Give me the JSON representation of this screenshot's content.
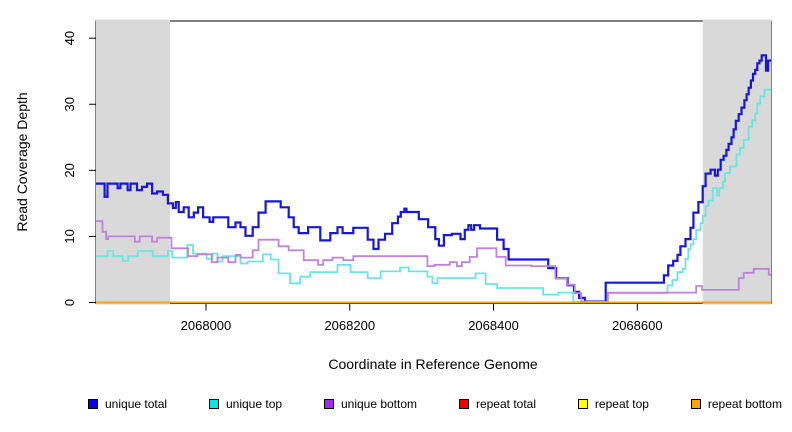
{
  "chart_data": {
    "type": "step-line",
    "title": "",
    "xlabel": "Coordinate in Reference Genome",
    "ylabel": "Read Coverage Depth",
    "xlim": [
      2067847,
      2068786
    ],
    "ylim": [
      0,
      42.6
    ],
    "x_ticks": [
      {
        "value": 2068000,
        "label": "2068000"
      },
      {
        "value": 2068200,
        "label": "2068200"
      },
      {
        "value": 2068400,
        "label": "2068400"
      },
      {
        "value": 2068600,
        "label": "2068600"
      }
    ],
    "y_ticks": [
      {
        "value": 0,
        "label": "0"
      },
      {
        "value": 10,
        "label": "10"
      },
      {
        "value": 20,
        "label": "20"
      },
      {
        "value": 30,
        "label": "30"
      },
      {
        "value": 40,
        "label": "40"
      }
    ],
    "grid": false,
    "legend_position": "bottom-horizontal",
    "background_color": "#FFFFFF",
    "axis_color": "#000000",
    "shaded_region_color": "#D9D9D9",
    "shaded_regions": [
      {
        "x0": 2067847,
        "x1": 2067950
      },
      {
        "x0": 2068691,
        "x1": 2068786
      }
    ],
    "series": [
      {
        "name": "unique total",
        "line_color": "#1717D6",
        "legend_color": "#0000EE",
        "line_width": 2.2,
        "steps": [
          [
            2067847,
            18
          ],
          [
            2067859,
            16
          ],
          [
            2067863,
            18
          ],
          [
            2067877,
            17.3
          ],
          [
            2067881,
            18
          ],
          [
            2067891,
            17
          ],
          [
            2067895,
            18
          ],
          [
            2067904,
            17
          ],
          [
            2067911,
            17.5
          ],
          [
            2067918,
            18
          ],
          [
            2067925,
            16.5
          ],
          [
            2067932,
            16.8
          ],
          [
            2067940,
            16.3
          ],
          [
            2067947,
            15
          ],
          [
            2067954,
            14.3
          ],
          [
            2067958,
            15.2
          ],
          [
            2067962,
            13.7
          ],
          [
            2067969,
            14.4
          ],
          [
            2067976,
            12.9
          ],
          [
            2067983,
            13.6
          ],
          [
            2067989,
            14.4
          ],
          [
            2067996,
            12.9
          ],
          [
            2068005,
            12.2
          ],
          [
            2068010,
            12.9
          ],
          [
            2068031,
            11.4
          ],
          [
            2068041,
            12.1
          ],
          [
            2068048,
            11.4
          ],
          [
            2068055,
            10.1
          ],
          [
            2068065,
            11.4
          ],
          [
            2068073,
            13.6
          ],
          [
            2068083,
            15.3
          ],
          [
            2068104,
            14.4
          ],
          [
            2068115,
            12.9
          ],
          [
            2068122,
            11.4
          ],
          [
            2068129,
            10.5
          ],
          [
            2068142,
            11.4
          ],
          [
            2068159,
            9.4
          ],
          [
            2068173,
            10.5
          ],
          [
            2068183,
            11.4
          ],
          [
            2068190,
            10.5
          ],
          [
            2068205,
            11.3
          ],
          [
            2068225,
            9.5
          ],
          [
            2068233,
            8.1
          ],
          [
            2068240,
            9.5
          ],
          [
            2068249,
            10.4
          ],
          [
            2068259,
            12
          ],
          [
            2068267,
            13
          ],
          [
            2068271,
            13.7
          ],
          [
            2068276,
            14.2
          ],
          [
            2068279,
            13.7
          ],
          [
            2068296,
            12.6
          ],
          [
            2068309,
            11.4
          ],
          [
            2068319,
            9.6
          ],
          [
            2068324,
            8.6
          ],
          [
            2068331,
            10.2
          ],
          [
            2068342,
            10.4
          ],
          [
            2068354,
            9.6
          ],
          [
            2068360,
            11
          ],
          [
            2068365,
            11.7
          ],
          [
            2068369,
            11
          ],
          [
            2068373,
            11.7
          ],
          [
            2068381,
            11.2
          ],
          [
            2068405,
            9.5
          ],
          [
            2068414,
            8.1
          ],
          [
            2068421,
            6.5
          ],
          [
            2068476,
            5.2
          ],
          [
            2068487,
            3.7
          ],
          [
            2068503,
            2.6
          ],
          [
            2068512,
            1.6
          ],
          [
            2068519,
            0.7
          ],
          [
            2068527,
            0.15
          ],
          [
            2068556,
            3
          ],
          [
            2068637,
            4.1
          ],
          [
            2068643,
            5.6
          ],
          [
            2068650,
            6.3
          ],
          [
            2068656,
            7.2
          ],
          [
            2068660,
            8.5
          ],
          [
            2068667,
            9.6
          ],
          [
            2068674,
            11.3
          ],
          [
            2068678,
            13.6
          ],
          [
            2068685,
            15.2
          ],
          [
            2068691,
            17.6
          ],
          [
            2068695,
            19.5
          ],
          [
            2068702,
            20.1
          ],
          [
            2068708,
            19.2
          ],
          [
            2068712,
            20.1
          ],
          [
            2068716,
            21.6
          ],
          [
            2068720,
            22.2
          ],
          [
            2068724,
            23.1
          ],
          [
            2068727,
            24
          ],
          [
            2068731,
            25
          ],
          [
            2068734,
            26.2
          ],
          [
            2068737,
            27.5
          ],
          [
            2068741,
            28.5
          ],
          [
            2068745,
            29.5
          ],
          [
            2068749,
            30.6
          ],
          [
            2068752,
            31.5
          ],
          [
            2068755,
            32.5
          ],
          [
            2068758,
            33.6
          ],
          [
            2068761,
            34.6
          ],
          [
            2068764,
            35.2
          ],
          [
            2068767,
            36.2
          ],
          [
            2068770,
            36.6
          ],
          [
            2068773,
            37.4
          ],
          [
            2068779,
            35.1
          ],
          [
            2068782,
            36.6
          ]
        ]
      },
      {
        "name": "unique top",
        "line_color": "#6FE3E3",
        "legend_color": "#00E8E8",
        "line_width": 1.8,
        "steps": [
          [
            2067847,
            7
          ],
          [
            2067863,
            7.8
          ],
          [
            2067871,
            7
          ],
          [
            2067884,
            6.3
          ],
          [
            2067892,
            7
          ],
          [
            2067905,
            7.8
          ],
          [
            2067926,
            7
          ],
          [
            2067947,
            7.8
          ],
          [
            2067953,
            6.8
          ],
          [
            2067974,
            8.7
          ],
          [
            2067982,
            7.4
          ],
          [
            2068001,
            6.6
          ],
          [
            2068009,
            7.4
          ],
          [
            2068016,
            6.2
          ],
          [
            2068023,
            7
          ],
          [
            2068048,
            5.9
          ],
          [
            2068058,
            6.2
          ],
          [
            2068079,
            7.3
          ],
          [
            2068090,
            6.5
          ],
          [
            2068101,
            4.4
          ],
          [
            2068117,
            2.9
          ],
          [
            2068131,
            3.9
          ],
          [
            2068145,
            4.6
          ],
          [
            2068183,
            5.7
          ],
          [
            2068201,
            4.6
          ],
          [
            2068225,
            3.7
          ],
          [
            2068243,
            4.7
          ],
          [
            2068270,
            5.3
          ],
          [
            2068282,
            4.7
          ],
          [
            2068308,
            3.9
          ],
          [
            2068315,
            2.9
          ],
          [
            2068322,
            3.7
          ],
          [
            2068375,
            4.4
          ],
          [
            2068389,
            2.8
          ],
          [
            2068405,
            2.2
          ],
          [
            2068469,
            1.2
          ],
          [
            2068490,
            1.5
          ],
          [
            2068511,
            0.1
          ],
          [
            2068559,
            1.4
          ],
          [
            2068642,
            2.6
          ],
          [
            2068649,
            3.4
          ],
          [
            2068656,
            4.6
          ],
          [
            2068663,
            5.1
          ],
          [
            2068667,
            6.6
          ],
          [
            2068671,
            8.1
          ],
          [
            2068674,
            8.8
          ],
          [
            2068678,
            9.6
          ],
          [
            2068682,
            11
          ],
          [
            2068688,
            12
          ],
          [
            2068691,
            13.1
          ],
          [
            2068695,
            14.6
          ],
          [
            2068699,
            15.4
          ],
          [
            2068705,
            17.3
          ],
          [
            2068711,
            16.2
          ],
          [
            2068714,
            17.3
          ],
          [
            2068719,
            18.3
          ],
          [
            2068722,
            19.6
          ],
          [
            2068729,
            20.6
          ],
          [
            2068738,
            22.4
          ],
          [
            2068743,
            23.4
          ],
          [
            2068748,
            24.6
          ],
          [
            2068755,
            26.6
          ],
          [
            2068760,
            27.6
          ],
          [
            2068764,
            28.6
          ],
          [
            2068767,
            30.1
          ],
          [
            2068771,
            31.2
          ],
          [
            2068777,
            32.2
          ]
        ]
      },
      {
        "name": "unique bottom",
        "line_color": "#BE84DC",
        "legend_color": "#A428E8",
        "line_width": 1.8,
        "steps": [
          [
            2067847,
            12.3
          ],
          [
            2067856,
            10.7
          ],
          [
            2067861,
            9.6
          ],
          [
            2067864,
            10
          ],
          [
            2067901,
            9.2
          ],
          [
            2067908,
            10
          ],
          [
            2067925,
            9.2
          ],
          [
            2067932,
            9.8
          ],
          [
            2067952,
            8.2
          ],
          [
            2067975,
            7
          ],
          [
            2067988,
            7.3
          ],
          [
            2068008,
            6.1
          ],
          [
            2068016,
            6.8
          ],
          [
            2068031,
            6.1
          ],
          [
            2068041,
            7.2
          ],
          [
            2068048,
            6.8
          ],
          [
            2068065,
            7.9
          ],
          [
            2068073,
            9.5
          ],
          [
            2068101,
            8.5
          ],
          [
            2068115,
            7.9
          ],
          [
            2068136,
            6.4
          ],
          [
            2068156,
            5.7
          ],
          [
            2068163,
            6.4
          ],
          [
            2068176,
            6.8
          ],
          [
            2068191,
            6.4
          ],
          [
            2068205,
            7
          ],
          [
            2068308,
            5.5
          ],
          [
            2068318,
            5.7
          ],
          [
            2068339,
            6.1
          ],
          [
            2068349,
            5.5
          ],
          [
            2068356,
            6.1
          ],
          [
            2068367,
            6.9
          ],
          [
            2068377,
            8.2
          ],
          [
            2068404,
            6.9
          ],
          [
            2068417,
            5.6
          ],
          [
            2068453,
            5.5
          ],
          [
            2068486,
            3.7
          ],
          [
            2068502,
            2.7
          ],
          [
            2068513,
            1.4
          ],
          [
            2068522,
            0.1
          ],
          [
            2068559,
            1.5
          ],
          [
            2068682,
            2.5
          ],
          [
            2068690,
            1.9
          ],
          [
            2068741,
            3.7
          ],
          [
            2068748,
            4.5
          ],
          [
            2068762,
            5.1
          ],
          [
            2068783,
            4.2
          ]
        ]
      },
      {
        "name": "repeat total",
        "line_color": "#DD0000",
        "legend_color": "#EE0000",
        "line_width": 1.5,
        "steps": [
          [
            2067847,
            0
          ]
        ]
      },
      {
        "name": "repeat top",
        "line_color": "#FFFF00",
        "legend_color": "#FFFF00",
        "line_width": 1.5,
        "steps": [
          [
            2067847,
            0
          ]
        ]
      },
      {
        "name": "repeat bottom",
        "line_color": "#FFA20A",
        "legend_color": "#FFA500",
        "line_width": 1.8,
        "steps": [
          [
            2067847,
            0
          ]
        ]
      }
    ]
  }
}
